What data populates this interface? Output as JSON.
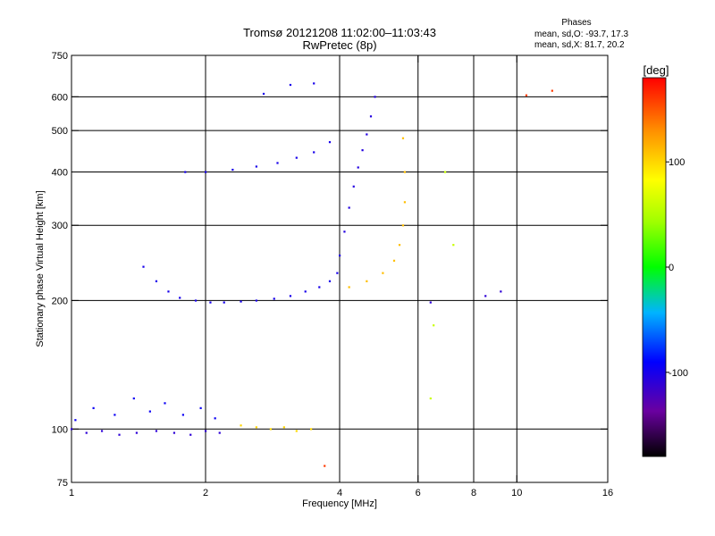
{
  "chart_data": {
    "type": "scatter",
    "title_line1": "Tromsø 20121208 11:02:00–11:03:43",
    "title_line2": "RwPretec (8p)",
    "phases": {
      "heading": "Phases",
      "line_O": "mean, sd,O: -93.7, 17.3",
      "line_X": "mean, sd,X: 81.7, 20.2"
    },
    "xlabel": "Frequency [MHz]",
    "ylabel": "Stationary phase Virtual Height [km]",
    "x_scale": "log",
    "y_scale": "log",
    "xlim": [
      1,
      16
    ],
    "ylim": [
      75,
      750
    ],
    "x_ticks": [
      1,
      2,
      4,
      6,
      8,
      10,
      16
    ],
    "x_tick_labels": [
      "1",
      "2",
      "4",
      "6",
      "8",
      "10",
      "16"
    ],
    "x_grid": [
      2,
      4,
      6,
      8,
      10
    ],
    "y_ticks": [
      75,
      100,
      200,
      300,
      400,
      500,
      600,
      750
    ],
    "y_tick_labels": [
      "75",
      "100",
      "200",
      "300",
      "400",
      "500",
      "600",
      "750"
    ],
    "y_grid": [
      100,
      200,
      300,
      400,
      500,
      600
    ],
    "grid": true,
    "colorbar": {
      "label": "[deg]",
      "min": -180,
      "max": 180,
      "ticks": [
        100,
        0,
        -100
      ],
      "tick_labels": [
        "100",
        "0",
        "-100"
      ]
    },
    "traces": [
      {
        "phase": -110,
        "x": [
          1.0,
          1.08,
          1.17,
          1.28,
          1.4,
          1.55,
          1.7,
          1.85,
          2.0,
          2.15
        ],
        "y": [
          100,
          98,
          99,
          97,
          98,
          99,
          98,
          97,
          99,
          98
        ]
      },
      {
        "phase": -95,
        "x": [
          1.02,
          1.12,
          1.25,
          1.38,
          1.5,
          1.62,
          1.78,
          1.95,
          2.1
        ],
        "y": [
          105,
          112,
          108,
          118,
          110,
          115,
          108,
          112,
          106
        ]
      },
      {
        "phase": 100,
        "x": [
          2.4,
          2.6,
          2.8,
          3.0,
          3.2,
          3.45
        ],
        "y": [
          102,
          101,
          100,
          101,
          99,
          100
        ]
      },
      {
        "phase": -100,
        "x": [
          1.45,
          1.55,
          1.65,
          1.75,
          1.9,
          2.05,
          2.2,
          2.4,
          2.6,
          2.85,
          3.1,
          3.35,
          3.6,
          3.8,
          3.95
        ],
        "y": [
          240,
          222,
          210,
          203,
          200,
          198,
          198,
          199,
          200,
          202,
          205,
          210,
          215,
          222,
          232
        ]
      },
      {
        "phase": -105,
        "x": [
          4.0,
          4.1,
          4.2,
          4.3,
          4.4,
          4.5,
          4.6,
          4.7,
          4.8
        ],
        "y": [
          255,
          290,
          330,
          370,
          410,
          450,
          490,
          540,
          600
        ]
      },
      {
        "phase": 110,
        "x": [
          4.2,
          4.6,
          5.0,
          5.3,
          5.45,
          5.55,
          5.6,
          5.6,
          5.55
        ],
        "y": [
          215,
          222,
          232,
          248,
          270,
          300,
          340,
          400,
          480
        ]
      },
      {
        "phase": -100,
        "x": [
          1.8,
          2.0,
          2.3,
          2.6,
          2.9,
          3.2,
          3.5,
          3.8
        ],
        "y": [
          400,
          400,
          405,
          412,
          420,
          432,
          445,
          470
        ]
      },
      {
        "phase": -100,
        "x": [
          2.7,
          3.1,
          3.5
        ],
        "y": [
          610,
          640,
          645
        ]
      },
      {
        "phase": 60,
        "x": [
          6.4,
          6.5,
          6.9,
          7.2
        ],
        "y": [
          118,
          175,
          400,
          270
        ]
      },
      {
        "phase": -110,
        "x": [
          8.5,
          9.2,
          6.4
        ],
        "y": [
          205,
          210,
          198
        ]
      },
      {
        "phase": 160,
        "x": [
          10.5,
          12.0,
          3.7
        ],
        "y": [
          605,
          620,
          82
        ]
      }
    ]
  }
}
